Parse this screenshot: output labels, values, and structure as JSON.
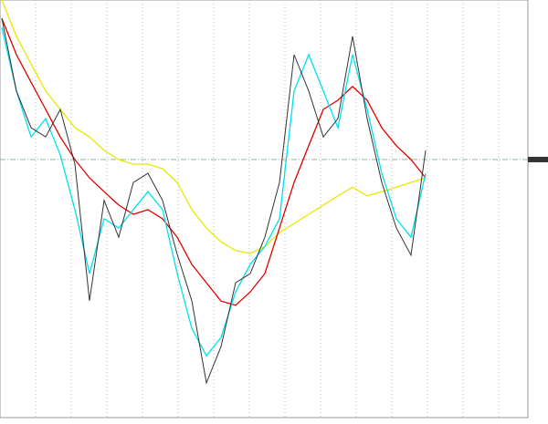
{
  "chart_data": {
    "type": "line",
    "x": [
      0,
      1,
      2,
      3,
      4,
      5,
      6,
      7,
      8,
      9,
      10,
      11,
      12,
      13,
      14,
      15,
      16,
      17,
      18,
      19,
      20,
      21,
      22,
      23,
      24,
      25,
      26,
      27,
      28,
      29
    ],
    "xlim": [
      0,
      29
    ],
    "ylim": [
      0,
      100
    ],
    "hline": 61.8,
    "series": [
      {
        "color": "#e8e800",
        "values": [
          100,
          91.3,
          84.7,
          78.2,
          73.8,
          69.4,
          67.2,
          64.0,
          61.8,
          60.7,
          60.7,
          59.6,
          56.3,
          49.8,
          45.4,
          42.1,
          40.0,
          39.3,
          41.0,
          44.3,
          46.5,
          48.7,
          50.9,
          53.1,
          55.2,
          53.1,
          54.1,
          55.2,
          56.3,
          57.4
        ]
      },
      {
        "color": "#e00000",
        "values": [
          95.6,
          86.9,
          80.3,
          73.8,
          67.2,
          61.8,
          57.4,
          54.1,
          50.9,
          48.7,
          49.8,
          47.6,
          43.2,
          36.7,
          32.3,
          27.9,
          26.9,
          30.1,
          34.5,
          45.4,
          56.3,
          65.1,
          73.8,
          76.0,
          79.3,
          76.0,
          69.4,
          65.1,
          61.8,
          57.4
        ]
      },
      {
        "color": "#00e0f0",
        "values": [
          93.4,
          78.2,
          67.2,
          71.6,
          62.9,
          49.8,
          34.5,
          47.6,
          45.4,
          49.8,
          54.1,
          49.8,
          34.5,
          21.4,
          14.8,
          19.2,
          30.1,
          36.7,
          41.0,
          47.6,
          78.2,
          86.9,
          78.2,
          69.4,
          86.9,
          73.8,
          58.5,
          47.6,
          43.2,
          58.5
        ]
      },
      {
        "color": "#333333",
        "values": [
          95.6,
          78.2,
          69.4,
          67.2,
          73.8,
          60.7,
          28.0,
          52.0,
          43.2,
          56.3,
          58.5,
          52.0,
          39.1,
          28.0,
          8.3,
          17.0,
          32.3,
          34.5,
          43.2,
          56.3,
          86.9,
          78.2,
          67.2,
          71.6,
          91.3,
          71.6,
          56.3,
          45.4,
          38.9,
          64.0
        ]
      }
    ]
  }
}
